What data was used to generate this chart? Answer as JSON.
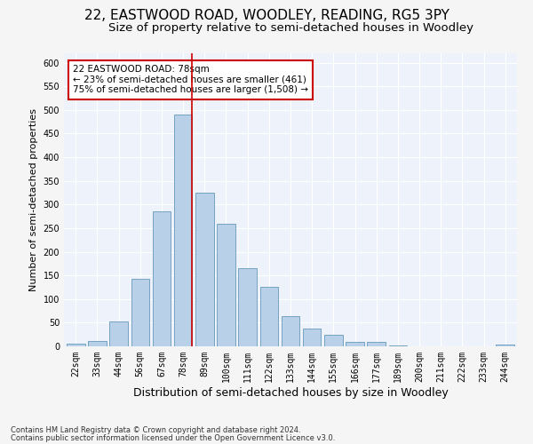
{
  "title": "22, EASTWOOD ROAD, WOODLEY, READING, RG5 3PY",
  "subtitle": "Size of property relative to semi-detached houses in Woodley",
  "xlabel": "Distribution of semi-detached houses by size in Woodley",
  "ylabel": "Number of semi-detached properties",
  "footnote1": "Contains HM Land Registry data © Crown copyright and database right 2024.",
  "footnote2": "Contains public sector information licensed under the Open Government Licence v3.0.",
  "annotation_title": "22 EASTWOOD ROAD: 78sqm",
  "annotation_line1": "← 23% of semi-detached houses are smaller (461)",
  "annotation_line2": "75% of semi-detached houses are larger (1,508) →",
  "bar_labels": [
    "22sqm",
    "33sqm",
    "44sqm",
    "56sqm",
    "67sqm",
    "78sqm",
    "89sqm",
    "100sqm",
    "111sqm",
    "122sqm",
    "133sqm",
    "144sqm",
    "155sqm",
    "166sqm",
    "177sqm",
    "189sqm",
    "200sqm",
    "211sqm",
    "222sqm",
    "233sqm",
    "244sqm"
  ],
  "bar_values": [
    5,
    12,
    52,
    143,
    285,
    490,
    325,
    260,
    165,
    125,
    63,
    38,
    24,
    10,
    10,
    2,
    0,
    0,
    0,
    0,
    3
  ],
  "bar_color": "#b8d0e8",
  "bar_edge_color": "#6699bb",
  "redline_index": 5,
  "ylim": [
    0,
    620
  ],
  "yticks": [
    0,
    50,
    100,
    150,
    200,
    250,
    300,
    350,
    400,
    450,
    500,
    550,
    600
  ],
  "background_color": "#eef2fa",
  "grid_color": "#ffffff",
  "annotation_box_color": "#ffffff",
  "annotation_box_edge": "#cc0000",
  "red_line_color": "#cc0000",
  "title_fontsize": 11,
  "subtitle_fontsize": 9.5,
  "xlabel_fontsize": 9,
  "ylabel_fontsize": 8,
  "tick_fontsize": 7,
  "annotation_fontsize": 7.5,
  "footnote_fontsize": 6
}
